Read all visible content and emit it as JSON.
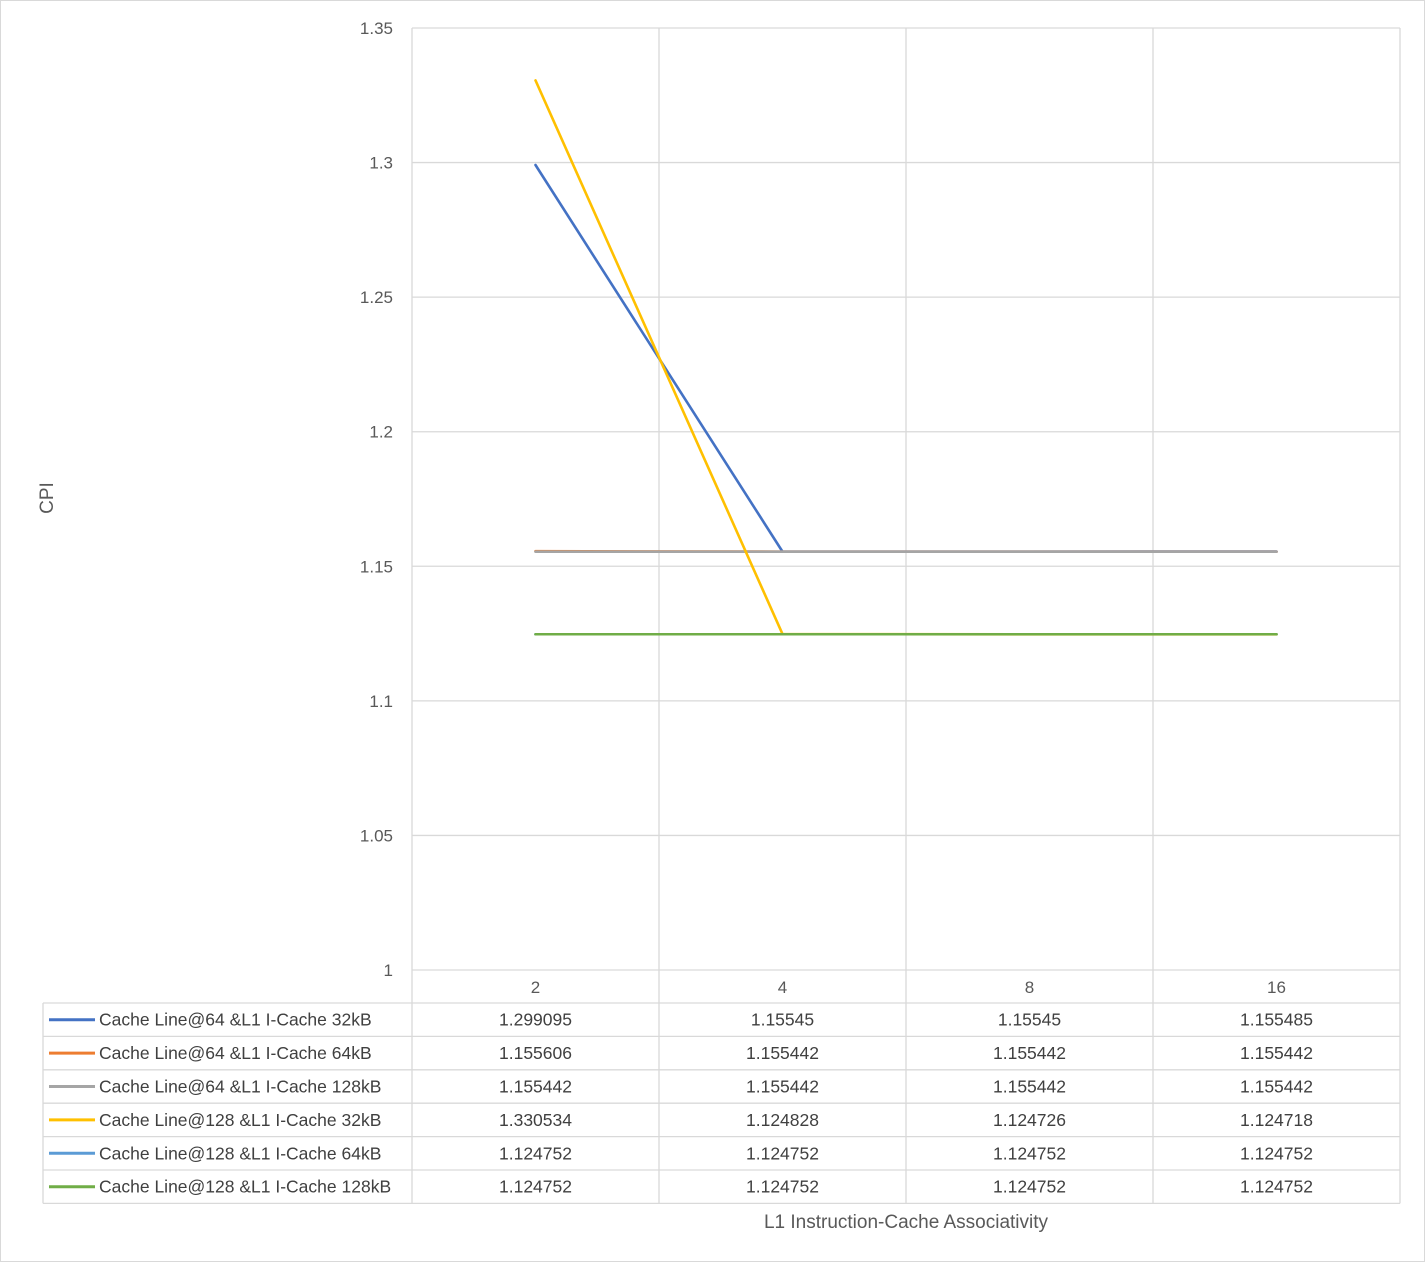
{
  "chart_data": {
    "type": "line",
    "title": "",
    "xlabel": "L1 Instruction-Cache Associativity",
    "ylabel": "CPI",
    "categories": [
      "2",
      "4",
      "8",
      "16"
    ],
    "ylim": [
      1,
      1.35
    ],
    "y_ticks": [
      "1",
      "1.05",
      "1.1",
      "1.15",
      "1.2",
      "1.25",
      "1.3",
      "1.35"
    ],
    "y_tick_values": [
      1,
      1.05,
      1.1,
      1.15,
      1.2,
      1.25,
      1.3,
      1.35
    ],
    "grid": true,
    "legend": "data-table",
    "series": [
      {
        "name": "Cache Line@64 &L1 I-Cache 32kB",
        "color": "#4472C4",
        "values": [
          1.299095,
          1.15545,
          1.15545,
          1.155485
        ],
        "labels": [
          "1.299095",
          "1.15545",
          "1.15545",
          "1.155485"
        ]
      },
      {
        "name": "Cache Line@64 &L1 I-Cache 64kB",
        "color": "#ED7D31",
        "values": [
          1.155606,
          1.155442,
          1.155442,
          1.155442
        ],
        "labels": [
          "1.155606",
          "1.155442",
          "1.155442",
          "1.155442"
        ]
      },
      {
        "name": "Cache Line@64 &L1 I-Cache 128kB",
        "color": "#A5A5A5",
        "values": [
          1.155442,
          1.155442,
          1.155442,
          1.155442
        ],
        "labels": [
          "1.155442",
          "1.155442",
          "1.155442",
          "1.155442"
        ]
      },
      {
        "name": "Cache Line@128 &L1 I-Cache 32kB",
        "color": "#FFC000",
        "values": [
          1.330534,
          1.124828,
          1.124726,
          1.124718
        ],
        "labels": [
          "1.330534",
          "1.124828",
          "1.124726",
          "1.124718"
        ]
      },
      {
        "name": "Cache Line@128 &L1 I-Cache 64kB",
        "color": "#5B9BD5",
        "values": [
          1.124752,
          1.124752,
          1.124752,
          1.124752
        ],
        "labels": [
          "1.124752",
          "1.124752",
          "1.124752",
          "1.124752"
        ]
      },
      {
        "name": "Cache Line@128 &L1 I-Cache 128kB",
        "color": "#70AD47",
        "values": [
          1.124752,
          1.124752,
          1.124752,
          1.124752
        ],
        "labels": [
          "1.124752",
          "1.124752",
          "1.124752",
          "1.124752"
        ]
      }
    ]
  }
}
